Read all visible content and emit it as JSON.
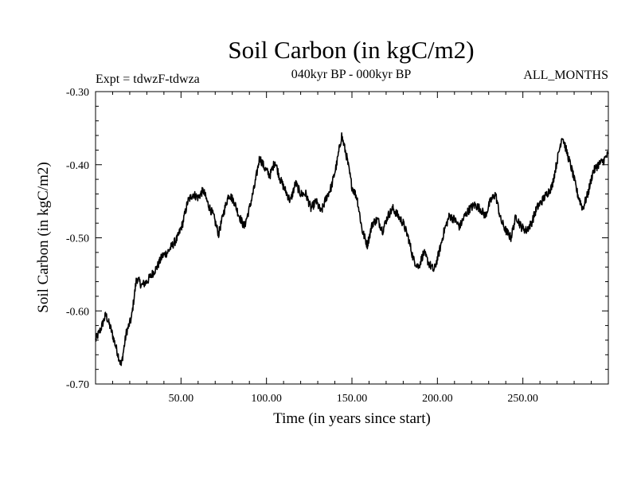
{
  "chart_data": {
    "type": "line",
    "title": "Soil Carbon (in kgC/m2)",
    "subtitle_left": "Expt = tdwzF-tdwza",
    "subtitle_center": "040kyr BP - 000kyr BP",
    "subtitle_right": "ALL_MONTHS",
    "xlabel": "Time (in years since start)",
    "ylabel": "Soil Carbon (in kgC/m2)",
    "xlim": [
      0,
      300
    ],
    "ylim": [
      -0.7,
      -0.3
    ],
    "x_ticks": [
      50,
      100,
      150,
      200,
      250
    ],
    "x_tick_labels": [
      "50.00",
      "100.00",
      "150.00",
      "200.00",
      "250.00"
    ],
    "y_ticks": [
      -0.7,
      -0.6,
      -0.5,
      -0.4,
      -0.3
    ],
    "y_tick_labels": [
      "-0.70",
      "-0.60",
      "-0.50",
      "-0.40",
      "-0.30"
    ],
    "grid": false,
    "series": [
      {
        "name": "soil carbon",
        "x": [
          0,
          3,
          6,
          9,
          12,
          15,
          18,
          21,
          24,
          27,
          30,
          33,
          36,
          39,
          42,
          45,
          48,
          51,
          54,
          57,
          60,
          63,
          66,
          69,
          72,
          75,
          78,
          81,
          84,
          87,
          90,
          93,
          96,
          99,
          102,
          105,
          108,
          111,
          114,
          117,
          120,
          123,
          126,
          129,
          132,
          135,
          138,
          141,
          144,
          147,
          150,
          153,
          156,
          159,
          162,
          165,
          168,
          171,
          174,
          177,
          180,
          183,
          186,
          189,
          192,
          195,
          198,
          201,
          204,
          207,
          210,
          213,
          216,
          219,
          222,
          225,
          228,
          231,
          234,
          237,
          240,
          243,
          246,
          249,
          252,
          255,
          258,
          261,
          264,
          267,
          270,
          273,
          276,
          279,
          282,
          285,
          288,
          291,
          294,
          297,
          300
        ],
        "values": [
          -0.64,
          -0.625,
          -0.605,
          -0.625,
          -0.65,
          -0.675,
          -0.63,
          -0.61,
          -0.555,
          -0.565,
          -0.56,
          -0.55,
          -0.54,
          -0.525,
          -0.52,
          -0.51,
          -0.5,
          -0.48,
          -0.45,
          -0.44,
          -0.445,
          -0.435,
          -0.455,
          -0.47,
          -0.495,
          -0.465,
          -0.44,
          -0.45,
          -0.47,
          -0.485,
          -0.46,
          -0.43,
          -0.39,
          -0.405,
          -0.415,
          -0.395,
          -0.42,
          -0.435,
          -0.45,
          -0.425,
          -0.44,
          -0.44,
          -0.46,
          -0.45,
          -0.465,
          -0.445,
          -0.43,
          -0.4,
          -0.36,
          -0.39,
          -0.43,
          -0.445,
          -0.49,
          -0.51,
          -0.48,
          -0.475,
          -0.49,
          -0.47,
          -0.46,
          -0.47,
          -0.48,
          -0.5,
          -0.53,
          -0.54,
          -0.52,
          -0.535,
          -0.545,
          -0.52,
          -0.49,
          -0.47,
          -0.475,
          -0.485,
          -0.47,
          -0.46,
          -0.455,
          -0.46,
          -0.47,
          -0.45,
          -0.44,
          -0.475,
          -0.49,
          -0.5,
          -0.47,
          -0.485,
          -0.49,
          -0.48,
          -0.46,
          -0.45,
          -0.44,
          -0.43,
          -0.395,
          -0.36,
          -0.385,
          -0.41,
          -0.44,
          -0.46,
          -0.44,
          -0.41,
          -0.4,
          -0.395,
          -0.385
        ]
      }
    ]
  }
}
